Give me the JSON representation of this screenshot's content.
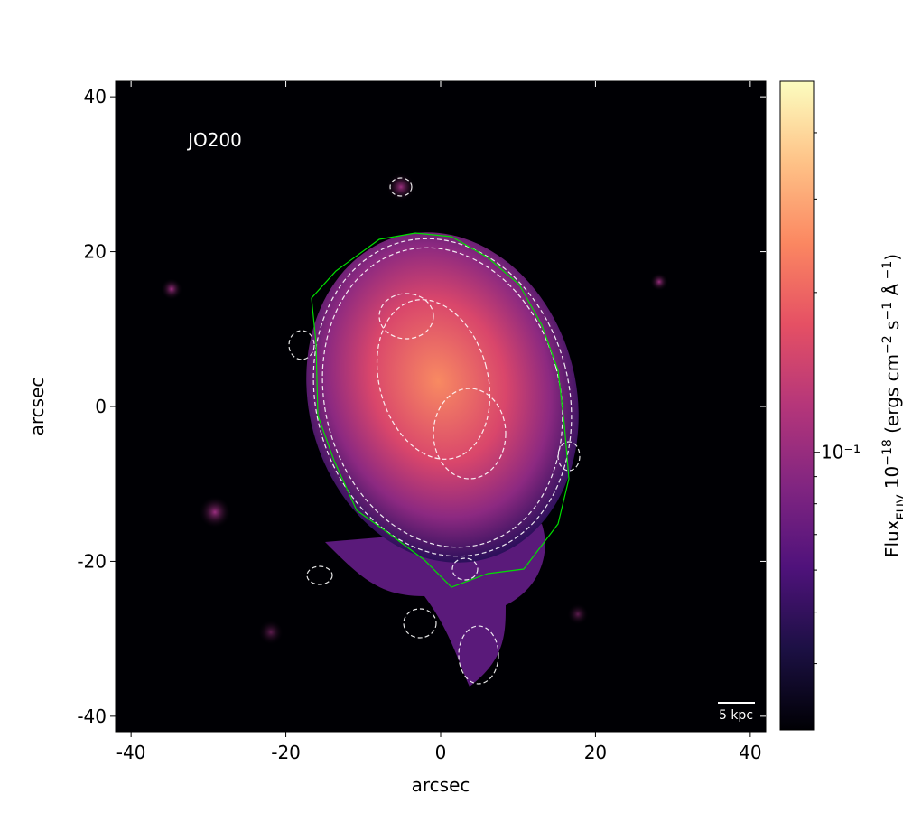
{
  "chart_data": {
    "type": "image",
    "annotation": "JO200",
    "scalebar_label": "5 kpc",
    "xlabel": "arcsec",
    "ylabel": "arcsec",
    "xlim": [
      -42,
      42
    ],
    "xticks": [
      -40,
      -20,
      0,
      20,
      40
    ],
    "ylim": [
      -42,
      42
    ],
    "yticks": [
      -40,
      -20,
      0,
      20,
      40
    ],
    "colorbar": {
      "scale": "log",
      "clim": [
        0.03,
        0.5
      ],
      "colormap": [
        "#000004",
        "#1c1044",
        "#4f127b",
        "#812581",
        "#b5367a",
        "#e55064",
        "#fb8761",
        "#fec287",
        "#fcfdbf"
      ],
      "ticks": [
        {
          "value": 0.1,
          "label": "10⁻¹"
        }
      ],
      "minor_ticks": [
        0.04,
        0.05,
        0.06,
        0.07,
        0.08,
        0.09,
        0.2,
        0.3,
        0.4
      ],
      "label": [
        {
          "text": "Flux"
        },
        {
          "text": "FUV",
          "shift": "sub"
        },
        {
          "text": " 10"
        },
        {
          "text": "−18",
          "shift": "super"
        },
        {
          "text": " (ergs cm"
        },
        {
          "text": "−2",
          "shift": "super"
        },
        {
          "text": " s"
        },
        {
          "text": "−1",
          "shift": "super"
        },
        {
          "text": " Å"
        },
        {
          "text": " −1",
          "shift": "super"
        },
        {
          "text": ")"
        }
      ]
    }
  }
}
